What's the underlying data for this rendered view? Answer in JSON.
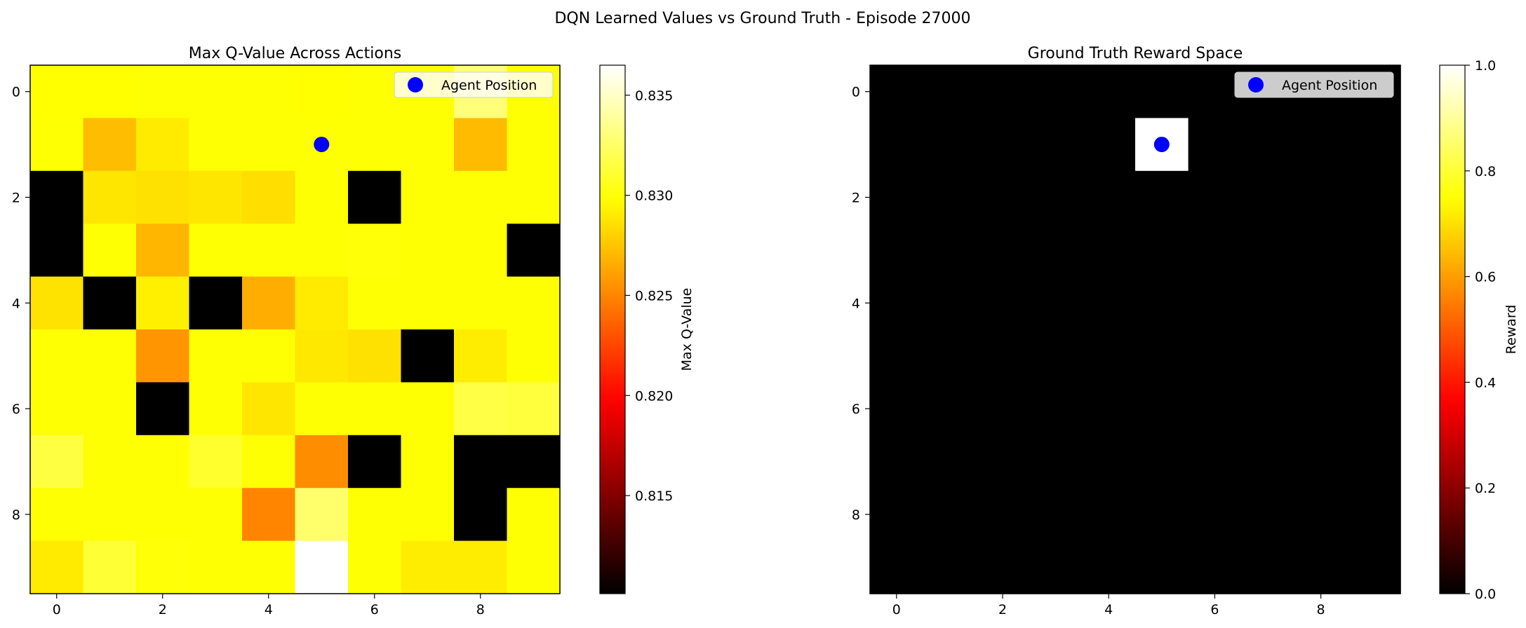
{
  "figure": {
    "title": "DQN Learned Values vs Ground Truth - Episode 27000"
  },
  "chart_data": [
    {
      "type": "heatmap",
      "title": "Max Q-Value Across Actions",
      "colormap": "hot",
      "grid": false,
      "xticks": [
        0,
        2,
        4,
        6,
        8
      ],
      "yticks": [
        0,
        2,
        4,
        6,
        8
      ],
      "xlim": [
        -0.5,
        9.5
      ],
      "ylim": [
        9.5,
        -0.5
      ],
      "colorbar": {
        "label": "Max Q-Value",
        "range": [
          0.8101,
          0.8365
        ],
        "ticks": [
          0.815,
          0.82,
          0.825,
          0.83,
          0.835
        ],
        "tick_labels": [
          "0.815",
          "0.820",
          "0.825",
          "0.830",
          "0.835"
        ]
      },
      "legend": {
        "label": "Agent Position",
        "placement": "upper right",
        "marker_color": "#0000ff"
      },
      "agent_position": {
        "x": 5,
        "y": 1
      },
      "values": [
        [
          0.8298,
          0.8298,
          0.8299,
          0.8299,
          0.8299,
          0.8298,
          0.8299,
          0.8299,
          0.833,
          0.8299
        ],
        [
          0.8299,
          0.8272,
          0.829,
          0.8299,
          0.8299,
          0.8299,
          0.8299,
          0.8299,
          0.8271,
          0.8299
        ],
        [
          0.8101,
          0.8288,
          0.8286,
          0.8288,
          0.8285,
          0.8299,
          0.8101,
          0.8299,
          0.8299,
          0.8299
        ],
        [
          0.8101,
          0.8299,
          0.8269,
          0.8299,
          0.8299,
          0.8299,
          0.83,
          0.8299,
          0.8299,
          0.8101
        ],
        [
          0.8287,
          0.8101,
          0.8292,
          0.8101,
          0.8266,
          0.829,
          0.8299,
          0.8299,
          0.8299,
          0.8299
        ],
        [
          0.8299,
          0.8299,
          0.8256,
          0.8299,
          0.8299,
          0.8289,
          0.8286,
          0.8101,
          0.8291,
          0.8299
        ],
        [
          0.8299,
          0.8299,
          0.8101,
          0.8299,
          0.8288,
          0.8299,
          0.8299,
          0.8299,
          0.8316,
          0.8314
        ],
        [
          0.8315,
          0.8299,
          0.8299,
          0.831,
          0.8299,
          0.8253,
          0.8101,
          0.8299,
          0.8101,
          0.8101
        ],
        [
          0.8299,
          0.8299,
          0.8299,
          0.8299,
          0.825,
          0.8326,
          0.8299,
          0.8299,
          0.8101,
          0.8299
        ],
        [
          0.829,
          0.8312,
          0.83,
          0.8299,
          0.8299,
          0.8365,
          0.8299,
          0.8291,
          0.8291,
          0.8299
        ]
      ]
    },
    {
      "type": "heatmap",
      "title": "Ground Truth Reward Space",
      "colormap": "hot",
      "grid": false,
      "xticks": [
        0,
        2,
        4,
        6,
        8
      ],
      "yticks": [
        0,
        2,
        4,
        6,
        8
      ],
      "xlim": [
        -0.5,
        9.5
      ],
      "ylim": [
        9.5,
        -0.5
      ],
      "colorbar": {
        "label": "Reward",
        "range": [
          0.0,
          1.0
        ],
        "ticks": [
          0.0,
          0.2,
          0.4,
          0.6,
          0.8,
          1.0
        ],
        "tick_labels": [
          "0.0",
          "0.2",
          "0.4",
          "0.6",
          "0.8",
          "1.0"
        ]
      },
      "legend": {
        "label": "Agent Position",
        "placement": "upper right",
        "marker_color": "#0000ff"
      },
      "agent_position": {
        "x": 5,
        "y": 1
      },
      "values": [
        [
          0,
          0,
          0,
          0,
          0,
          0,
          0,
          0,
          0,
          0
        ],
        [
          0,
          0,
          0,
          0,
          0,
          1,
          0,
          0,
          0,
          0
        ],
        [
          0,
          0,
          0,
          0,
          0,
          0,
          0,
          0,
          0,
          0
        ],
        [
          0,
          0,
          0,
          0,
          0,
          0,
          0,
          0,
          0,
          0
        ],
        [
          0,
          0,
          0,
          0,
          0,
          0,
          0,
          0,
          0,
          0
        ],
        [
          0,
          0,
          0,
          0,
          0,
          0,
          0,
          0,
          0,
          0
        ],
        [
          0,
          0,
          0,
          0,
          0,
          0,
          0,
          0,
          0,
          0
        ],
        [
          0,
          0,
          0,
          0,
          0,
          0,
          0,
          0,
          0,
          0
        ],
        [
          0,
          0,
          0,
          0,
          0,
          0,
          0,
          0,
          0,
          0
        ],
        [
          0,
          0,
          0,
          0,
          0,
          0,
          0,
          0,
          0,
          0
        ]
      ]
    }
  ]
}
